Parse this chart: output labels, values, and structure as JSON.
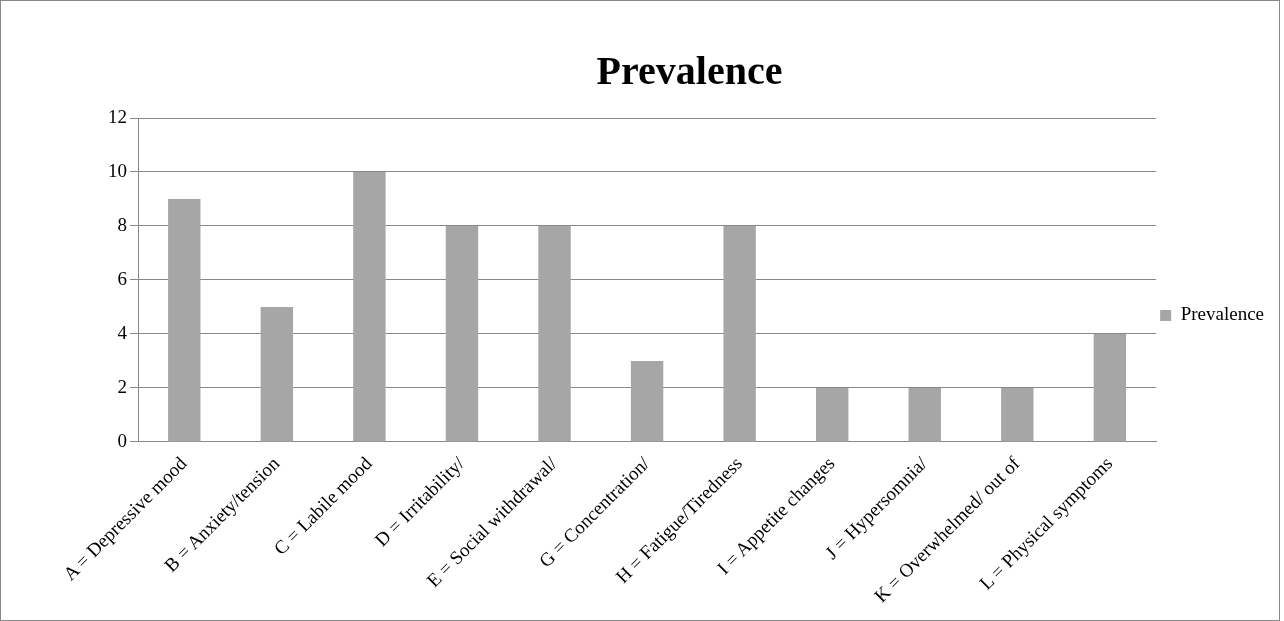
{
  "chart_data": {
    "type": "bar",
    "title": "Prevalence",
    "categories": [
      "A = Depressive mood",
      "B = Anxiety/tension",
      "C = Labile mood",
      "D = Irritability/",
      "E = Social withdrawal/",
      "G = Concentration/",
      "H = Fatigue/Tiredness",
      "I = Appetite changes",
      "J = Hypersomnia/",
      "K = Overwhelmed/ out of",
      "L = Physical symptoms"
    ],
    "series": [
      {
        "name": "Prevalence",
        "color": "#a6a6a6",
        "values": [
          9,
          5,
          10,
          8,
          8,
          3,
          8,
          2,
          2,
          2,
          4
        ]
      }
    ],
    "ylim": [
      0,
      12
    ],
    "yticks": [
      0,
      2,
      4,
      6,
      8,
      10,
      12
    ],
    "grid": "y",
    "legend": "right"
  }
}
